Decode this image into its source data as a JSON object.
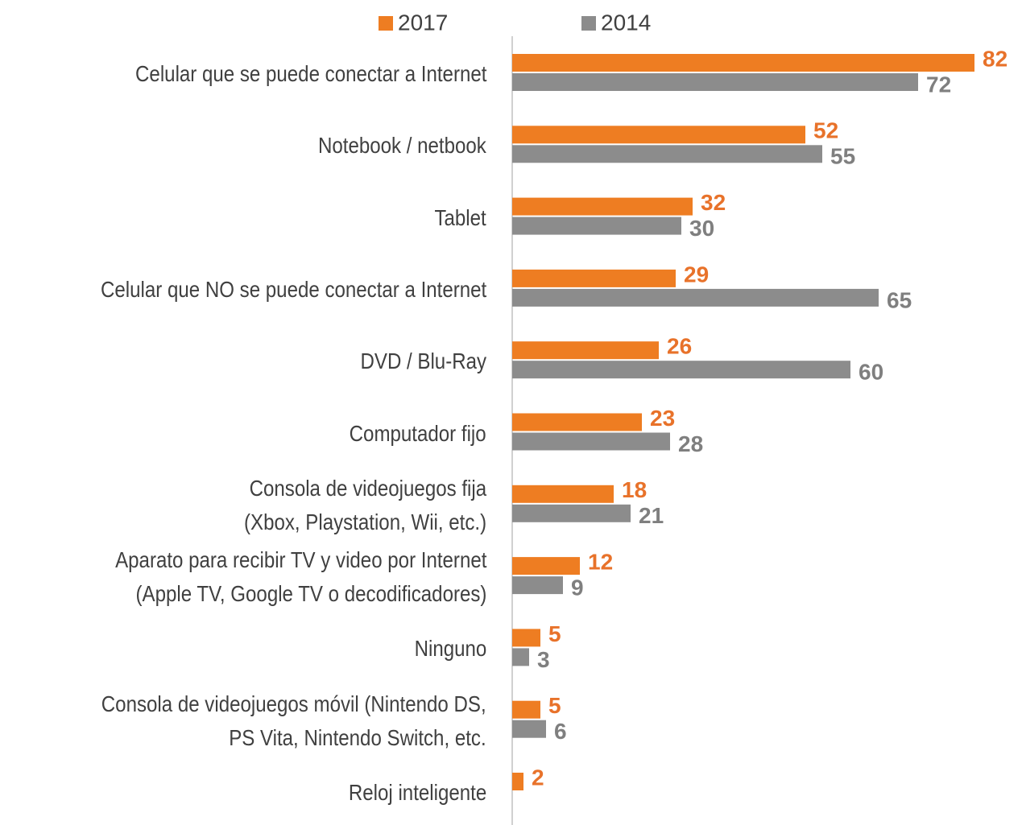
{
  "chart_data": {
    "type": "hbar",
    "categories": [
      "Celular que se puede conectar a Internet",
      "Notebook / netbook",
      "Tablet",
      "Celular que NO se puede conectar a Internet",
      "DVD / Blu-Ray",
      "Computador fijo",
      "Consola de videojuegos fija\n(Xbox, Playstation, Wii, etc.)",
      "Aparato para recibir TV y video por Internet\n(Apple TV, Google TV o decodificadores)",
      "Ninguno",
      "Consola de videojuegos móvil (Nintendo DS,\nPS Vita, Nintendo Switch, etc.",
      "Reloj inteligente"
    ],
    "series": [
      {
        "name": "2017",
        "color": "#ee7d22",
        "values": [
          82,
          52,
          32,
          29,
          26,
          23,
          18,
          12,
          5,
          5,
          2
        ]
      },
      {
        "name": "2014",
        "color": "#8c8c8c",
        "values": [
          72,
          55,
          30,
          65,
          60,
          28,
          21,
          9,
          3,
          6,
          null
        ]
      }
    ],
    "xlim": [
      0,
      90
    ]
  }
}
